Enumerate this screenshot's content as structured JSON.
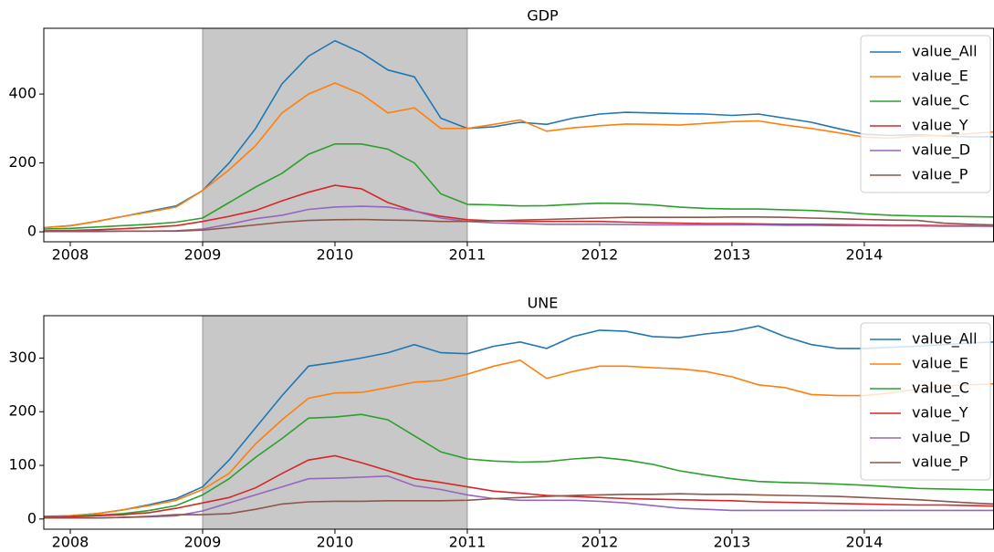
{
  "chart_data": [
    {
      "type": "line",
      "title": "GDP",
      "x": [
        2007.8,
        2008.0,
        2008.2,
        2008.4,
        2008.6,
        2008.8,
        2009.0,
        2009.2,
        2009.4,
        2009.6,
        2009.8,
        2010.0,
        2010.2,
        2010.4,
        2010.6,
        2010.8,
        2011.0,
        2011.2,
        2011.4,
        2011.6,
        2011.8,
        2012.0,
        2012.2,
        2012.4,
        2012.6,
        2012.8,
        2013.0,
        2013.2,
        2013.4,
        2013.6,
        2013.8,
        2014.0,
        2014.2,
        2014.4,
        2014.6,
        2014.8,
        2014.98
      ],
      "xlim": [
        2007.8,
        2014.98
      ],
      "xticks": [
        2008,
        2009,
        2010,
        2011,
        2012,
        2013,
        2014
      ],
      "ylim": [
        -29,
        591
      ],
      "yticks": [
        0,
        200,
        400
      ],
      "span": [
        2009,
        2011
      ],
      "legend": "upper right",
      "series": [
        {
          "name": "value_All",
          "color": "#1f77b4",
          "values": [
            12,
            18,
            30,
            45,
            60,
            75,
            120,
            200,
            300,
            430,
            510,
            555,
            520,
            470,
            450,
            330,
            300,
            305,
            318,
            312,
            330,
            342,
            347,
            345,
            343,
            342,
            338,
            342,
            330,
            318,
            300,
            283,
            280,
            282,
            278,
            276,
            276
          ]
        },
        {
          "name": "value_E",
          "color": "#ff7f0e",
          "values": [
            12,
            17,
            30,
            45,
            58,
            72,
            120,
            180,
            250,
            345,
            400,
            432,
            400,
            345,
            360,
            300,
            300,
            312,
            325,
            292,
            302,
            308,
            313,
            312,
            310,
            315,
            320,
            322,
            310,
            300,
            288,
            275,
            272,
            278,
            280,
            285,
            290
          ]
        },
        {
          "name": "value_C",
          "color": "#2ca02c",
          "values": [
            8,
            10,
            14,
            18,
            22,
            28,
            40,
            85,
            130,
            170,
            225,
            255,
            255,
            240,
            200,
            110,
            80,
            78,
            75,
            76,
            80,
            83,
            82,
            78,
            72,
            68,
            66,
            66,
            64,
            62,
            58,
            52,
            48,
            46,
            45,
            44,
            43
          ]
        },
        {
          "name": "value_Y",
          "color": "#d62728",
          "values": [
            3,
            4,
            6,
            9,
            13,
            18,
            30,
            45,
            62,
            90,
            115,
            135,
            125,
            85,
            60,
            45,
            35,
            32,
            30,
            30,
            30,
            30,
            28,
            26,
            25,
            24,
            24,
            23,
            22,
            22,
            21,
            20,
            19,
            19,
            18,
            17,
            16
          ]
        },
        {
          "name": "value_D",
          "color": "#9467bd",
          "values": [
            2,
            2,
            2,
            2,
            2,
            3,
            8,
            22,
            38,
            48,
            65,
            72,
            74,
            72,
            60,
            40,
            30,
            26,
            24,
            22,
            22,
            22,
            21,
            20,
            20,
            20,
            20,
            20,
            19,
            19,
            18,
            18,
            17,
            17,
            16,
            16,
            16
          ]
        },
        {
          "name": "value_P",
          "color": "#8c564b",
          "values": [
            1,
            1,
            1,
            2,
            2,
            2,
            5,
            12,
            20,
            28,
            33,
            35,
            36,
            34,
            33,
            30,
            30,
            32,
            34,
            36,
            38,
            40,
            42,
            42,
            42,
            42,
            43,
            43,
            42,
            40,
            38,
            36,
            34,
            33,
            25,
            22,
            20
          ]
        }
      ]
    },
    {
      "type": "line",
      "title": "UNE",
      "x": [
        2007.8,
        2008.0,
        2008.2,
        2008.4,
        2008.6,
        2008.8,
        2009.0,
        2009.2,
        2009.4,
        2009.6,
        2009.8,
        2010.0,
        2010.2,
        2010.4,
        2010.6,
        2010.8,
        2011.0,
        2011.2,
        2011.4,
        2011.6,
        2011.8,
        2012.0,
        2012.2,
        2012.4,
        2012.6,
        2012.8,
        2013.0,
        2013.2,
        2013.4,
        2013.6,
        2013.8,
        2014.0,
        2014.2,
        2014.4,
        2014.6,
        2014.8,
        2014.98
      ],
      "xlim": [
        2007.8,
        2014.98
      ],
      "xticks": [
        2008,
        2009,
        2010,
        2011,
        2012,
        2013,
        2014
      ],
      "ylim": [
        -19,
        379
      ],
      "yticks": [
        0,
        100,
        200,
        300
      ],
      "span": [
        2009,
        2011
      ],
      "legend": "upper right",
      "series": [
        {
          "name": "value_All",
          "color": "#1f77b4",
          "values": [
            5,
            6,
            10,
            17,
            27,
            38,
            60,
            110,
            170,
            230,
            285,
            292,
            300,
            310,
            325,
            310,
            308,
            322,
            330,
            318,
            340,
            352,
            350,
            340,
            338,
            345,
            350,
            360,
            340,
            325,
            318,
            318,
            320,
            322,
            325,
            328,
            330
          ]
        },
        {
          "name": "value_E",
          "color": "#ff7f0e",
          "values": [
            4,
            6,
            10,
            17,
            25,
            35,
            55,
            85,
            140,
            185,
            225,
            235,
            236,
            245,
            255,
            258,
            270,
            285,
            296,
            262,
            275,
            285,
            285,
            282,
            280,
            275,
            265,
            250,
            245,
            232,
            230,
            230,
            235,
            242,
            248,
            250,
            252
          ]
        },
        {
          "name": "value_C",
          "color": "#2ca02c",
          "values": [
            4,
            5,
            7,
            10,
            16,
            25,
            45,
            75,
            115,
            150,
            188,
            190,
            195,
            185,
            155,
            125,
            112,
            108,
            106,
            107,
            112,
            115,
            110,
            102,
            90,
            82,
            75,
            70,
            68,
            67,
            65,
            63,
            60,
            57,
            56,
            55,
            54
          ]
        },
        {
          "name": "value_Y",
          "color": "#d62728",
          "values": [
            3,
            4,
            6,
            8,
            12,
            20,
            30,
            40,
            58,
            85,
            110,
            118,
            105,
            90,
            75,
            68,
            60,
            52,
            48,
            44,
            42,
            40,
            38,
            37,
            36,
            35,
            34,
            32,
            31,
            30,
            29,
            28,
            27,
            26,
            26,
            25,
            24
          ]
        },
        {
          "name": "value_D",
          "color": "#9467bd",
          "values": [
            2,
            2,
            2,
            3,
            4,
            6,
            15,
            30,
            45,
            60,
            75,
            76,
            78,
            80,
            62,
            55,
            45,
            38,
            35,
            35,
            35,
            33,
            30,
            25,
            20,
            18,
            16,
            16,
            16,
            16,
            16,
            16,
            16,
            16,
            16,
            16,
            16
          ]
        },
        {
          "name": "value_P",
          "color": "#8c564b",
          "values": [
            2,
            2,
            2,
            3,
            5,
            8,
            8,
            10,
            18,
            28,
            32,
            33,
            33,
            34,
            34,
            34,
            35,
            38,
            40,
            42,
            44,
            45,
            46,
            46,
            47,
            46,
            46,
            45,
            44,
            43,
            42,
            40,
            38,
            36,
            33,
            30,
            28
          ]
        }
      ]
    }
  ]
}
